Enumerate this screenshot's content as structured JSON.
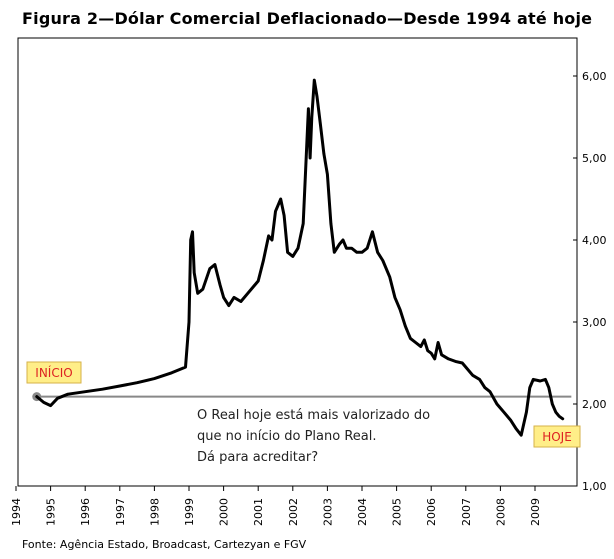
{
  "title": "Figura 2—Dólar Comercial Deflacionado—Desde 1994 até hoje",
  "source": "Fonte: Agência Estado, Broadcast, Cartezyan e FGV",
  "chart_data": {
    "type": "line",
    "xlim": [
      1994,
      2010
    ],
    "ylim": [
      1.0,
      6.5
    ],
    "y_ticks": [
      "1,00",
      "2,00",
      "3,00",
      "4,00",
      "5,00",
      "6,00"
    ],
    "y_tick_values": [
      1,
      2,
      3,
      4,
      5,
      6
    ],
    "x_ticks": [
      "1994",
      "1995",
      "1996",
      "1997",
      "1998",
      "1999",
      "2000",
      "2001",
      "2002",
      "2003",
      "2004",
      "2005",
      "2006",
      "2007",
      "2008",
      "2009"
    ],
    "x_tick_values": [
      1994,
      1995,
      1996,
      1997,
      1998,
      1999,
      2000,
      2001,
      2002,
      2003,
      2004,
      2005,
      2006,
      2007,
      2008,
      2009
    ],
    "reference_level": 2.09,
    "colors": {
      "series": "#000000",
      "reference": "#888888",
      "marker": "#888888",
      "tag_bg": "#ffee88",
      "tag_text": "#dd2222"
    },
    "annotations": {
      "start_label": "INÍCIO",
      "end_label": "HOJE",
      "note_lines": [
        "O Real hoje está mais valorizado do",
        "que no início do Plano Real.",
        "Dá para acreditar?"
      ]
    },
    "series": [
      {
        "points": [
          [
            1994.6,
            2.09
          ],
          [
            1994.8,
            2.02
          ],
          [
            1995.0,
            1.98
          ],
          [
            1995.2,
            2.07
          ],
          [
            1995.5,
            2.12
          ],
          [
            1996.0,
            2.15
          ],
          [
            1996.5,
            2.18
          ],
          [
            1997.0,
            2.22
          ],
          [
            1997.5,
            2.26
          ],
          [
            1998.0,
            2.31
          ],
          [
            1998.5,
            2.38
          ],
          [
            1998.9,
            2.45
          ],
          [
            1999.0,
            3.0
          ],
          [
            1999.05,
            4.0
          ],
          [
            1999.1,
            4.1
          ],
          [
            1999.15,
            3.6
          ],
          [
            1999.25,
            3.35
          ],
          [
            1999.4,
            3.4
          ],
          [
            1999.6,
            3.65
          ],
          [
            1999.75,
            3.7
          ],
          [
            1999.9,
            3.45
          ],
          [
            2000.0,
            3.3
          ],
          [
            2000.15,
            3.2
          ],
          [
            2000.3,
            3.3
          ],
          [
            2000.5,
            3.25
          ],
          [
            2000.7,
            3.35
          ],
          [
            2000.9,
            3.45
          ],
          [
            2001.0,
            3.5
          ],
          [
            2001.15,
            3.75
          ],
          [
            2001.3,
            4.05
          ],
          [
            2001.4,
            4.0
          ],
          [
            2001.5,
            4.35
          ],
          [
            2001.65,
            4.5
          ],
          [
            2001.75,
            4.3
          ],
          [
            2001.85,
            3.85
          ],
          [
            2002.0,
            3.8
          ],
          [
            2002.15,
            3.9
          ],
          [
            2002.3,
            4.2
          ],
          [
            2002.45,
            5.6
          ],
          [
            2002.5,
            5.0
          ],
          [
            2002.55,
            5.5
          ],
          [
            2002.62,
            5.95
          ],
          [
            2002.7,
            5.75
          ],
          [
            2002.8,
            5.4
          ],
          [
            2002.9,
            5.05
          ],
          [
            2003.0,
            4.8
          ],
          [
            2003.1,
            4.2
          ],
          [
            2003.2,
            3.85
          ],
          [
            2003.35,
            3.95
          ],
          [
            2003.45,
            4.0
          ],
          [
            2003.55,
            3.9
          ],
          [
            2003.7,
            3.9
          ],
          [
            2003.85,
            3.85
          ],
          [
            2004.0,
            3.85
          ],
          [
            2004.15,
            3.9
          ],
          [
            2004.3,
            4.1
          ],
          [
            2004.45,
            3.85
          ],
          [
            2004.6,
            3.75
          ],
          [
            2004.8,
            3.55
          ],
          [
            2004.95,
            3.3
          ],
          [
            2005.1,
            3.15
          ],
          [
            2005.25,
            2.95
          ],
          [
            2005.4,
            2.8
          ],
          [
            2005.55,
            2.75
          ],
          [
            2005.7,
            2.7
          ],
          [
            2005.8,
            2.78
          ],
          [
            2005.9,
            2.65
          ],
          [
            2006.0,
            2.62
          ],
          [
            2006.1,
            2.55
          ],
          [
            2006.2,
            2.75
          ],
          [
            2006.3,
            2.6
          ],
          [
            2006.5,
            2.55
          ],
          [
            2006.7,
            2.52
          ],
          [
            2006.9,
            2.5
          ],
          [
            2007.0,
            2.45
          ],
          [
            2007.2,
            2.35
          ],
          [
            2007.4,
            2.3
          ],
          [
            2007.55,
            2.2
          ],
          [
            2007.7,
            2.15
          ],
          [
            2007.9,
            2.0
          ],
          [
            2008.1,
            1.9
          ],
          [
            2008.3,
            1.8
          ],
          [
            2008.45,
            1.7
          ],
          [
            2008.6,
            1.62
          ],
          [
            2008.75,
            1.9
          ],
          [
            2008.85,
            2.2
          ],
          [
            2008.95,
            2.3
          ],
          [
            2009.15,
            2.28
          ],
          [
            2009.3,
            2.3
          ],
          [
            2009.4,
            2.2
          ],
          [
            2009.5,
            2.0
          ],
          [
            2009.6,
            1.9
          ],
          [
            2009.7,
            1.85
          ],
          [
            2009.8,
            1.82
          ]
        ]
      }
    ]
  }
}
